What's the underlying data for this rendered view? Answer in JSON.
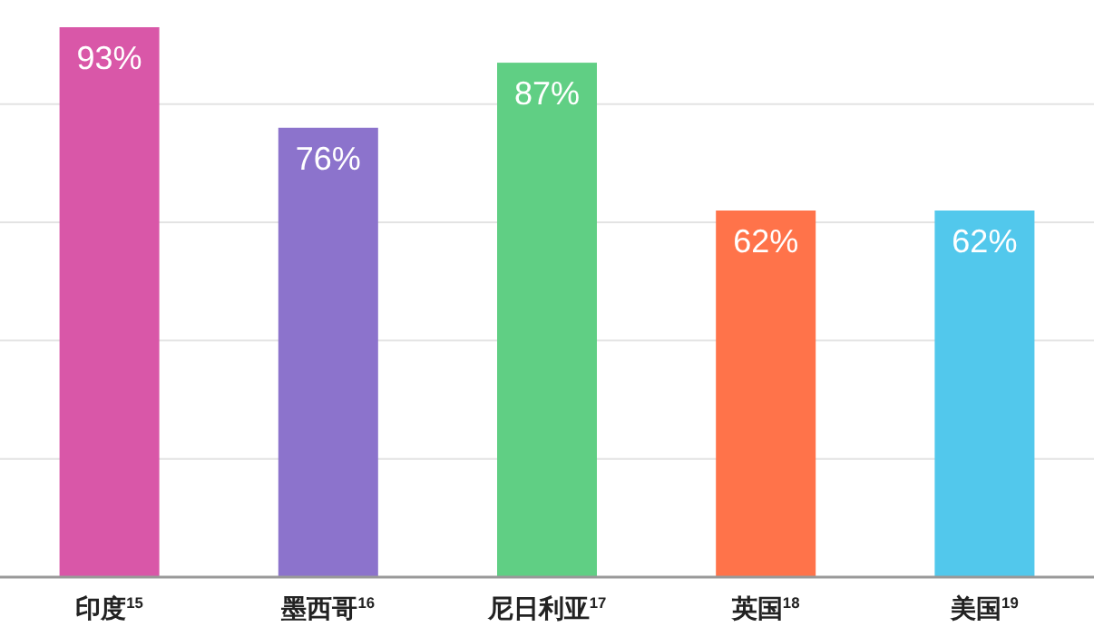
{
  "chart_data": {
    "type": "bar",
    "categories": [
      "印度$^{15}$",
      "墨西哥$^{16}$",
      "尼日利亚$^{17}$",
      "英国$^{18}$",
      "美国$^{19}$"
    ],
    "values": [
      93,
      76,
      87,
      62,
      62
    ],
    "colors": [
      "#d957a8",
      "#8c73cc",
      "#60cf84",
      "#ff734a",
      "#52c8ec"
    ],
    "value_labels": [
      "93%",
      "76%",
      "87%",
      "62%",
      "62%"
    ],
    "yticks": [
      {
        "value": 20,
        "label": null
      },
      {
        "value": 40,
        "label": null
      },
      {
        "value": 60,
        "label": null
      },
      {
        "value": 80,
        "label": null
      }
    ],
    "grid": "y",
    "tick_labels": "x"
  }
}
